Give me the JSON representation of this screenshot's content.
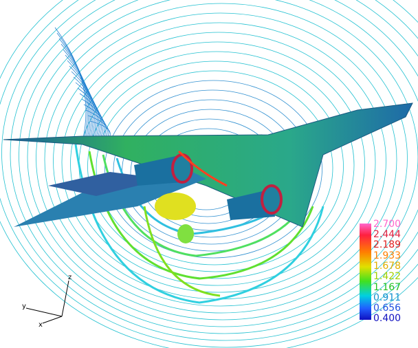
{
  "colorbar": {
    "labels": [
      "2.700",
      "2.444",
      "2.189",
      "1.933",
      "1.678",
      "1.422",
      "1.167",
      "0.911",
      "0.656",
      "0.400"
    ]
  },
  "axes_triad": {
    "z": "z",
    "y": "y",
    "x": "x"
  }
}
